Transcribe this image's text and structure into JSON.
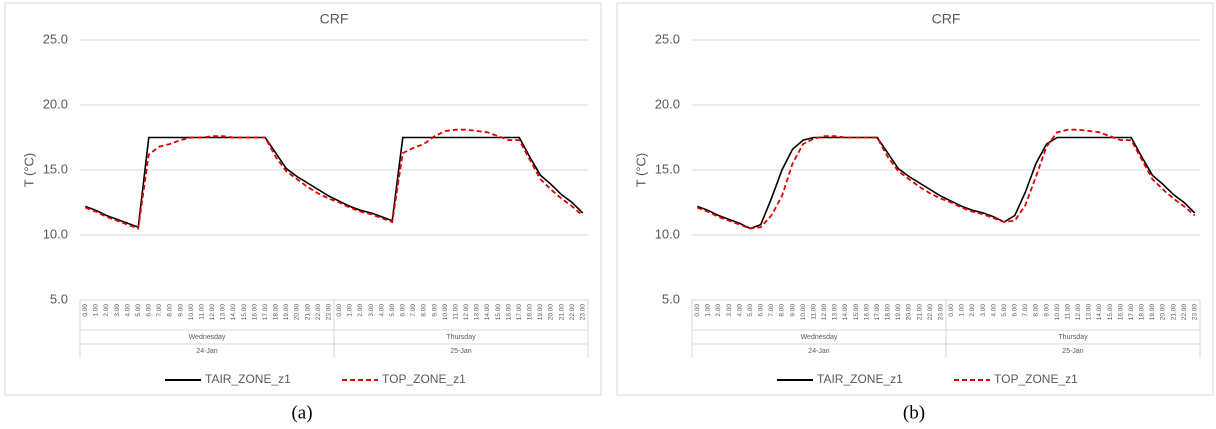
{
  "chart_data": [
    {
      "type": "line",
      "title": "CRF",
      "y_label": "T (°C)",
      "caption": "(a)",
      "ylim": [
        5,
        25
      ],
      "yticks": [
        {
          "value": 5,
          "label": "5.0"
        },
        {
          "value": 10,
          "label": "10.0"
        },
        {
          "value": 15,
          "label": "15.0"
        },
        {
          "value": 20,
          "label": "20.0"
        },
        {
          "value": 25,
          "label": "25.0"
        }
      ],
      "grid": true,
      "categories": [
        "0.00",
        "1.00",
        "2.00",
        "3.00",
        "4.00",
        "5.00",
        "6.00",
        "7.00",
        "8.00",
        "9.00",
        "10.00",
        "11.00",
        "12.00",
        "13.00",
        "14.00",
        "15.00",
        "16.00",
        "17.00",
        "18.00",
        "19.00",
        "20.00",
        "21.00",
        "22.00",
        "23.00",
        "0.00",
        "1.00",
        "2.00",
        "3.00",
        "4.00",
        "5.00",
        "6.00",
        "7.00",
        "8.00",
        "9.00",
        "10.00",
        "11.00",
        "12.00",
        "13.00",
        "14.00",
        "15.00",
        "16.00",
        "17.00",
        "18.00",
        "19.00",
        "20.00",
        "21.00",
        "22.00",
        "23.00"
      ],
      "groups": [
        {
          "name": "Wednesday",
          "date": "24-Jan"
        },
        {
          "name": "Thursday",
          "date": "25-Jan"
        }
      ],
      "legend": "bottom",
      "series": [
        {
          "name": "TAIR_ZONE_z1",
          "color": "#000000",
          "style": "solid",
          "values": [
            12.2,
            11.9,
            11.5,
            11.2,
            10.9,
            10.6,
            17.5,
            17.5,
            17.5,
            17.5,
            17.5,
            17.5,
            17.5,
            17.5,
            17.5,
            17.5,
            17.5,
            17.5,
            16.3,
            15.1,
            14.5,
            14.0,
            13.5,
            13.0,
            12.6,
            12.2,
            11.9,
            11.7,
            11.4,
            11.1,
            17.5,
            17.5,
            17.5,
            17.5,
            17.5,
            17.5,
            17.5,
            17.5,
            17.5,
            17.5,
            17.5,
            17.5,
            16.0,
            14.6,
            13.9,
            13.1,
            12.5,
            11.7
          ]
        },
        {
          "name": "TOP_ZONE_z1",
          "color": "#e00000",
          "style": "dashed",
          "values": [
            12.1,
            11.8,
            11.4,
            11.1,
            10.8,
            10.5,
            16.2,
            16.8,
            17.0,
            17.3,
            17.5,
            17.5,
            17.6,
            17.6,
            17.5,
            17.5,
            17.5,
            17.5,
            16.0,
            14.9,
            14.3,
            13.7,
            13.2,
            12.8,
            12.5,
            12.1,
            11.8,
            11.6,
            11.3,
            11.0,
            16.3,
            16.7,
            17.0,
            17.6,
            18.0,
            18.1,
            18.1,
            18.0,
            17.9,
            17.6,
            17.3,
            17.3,
            15.8,
            14.3,
            13.5,
            12.8,
            12.2,
            11.5
          ]
        }
      ]
    },
    {
      "type": "line",
      "title": "CRF",
      "y_label": "T (°C)",
      "caption": "(b)",
      "ylim": [
        5,
        25
      ],
      "yticks": [
        {
          "value": 5,
          "label": "5.0"
        },
        {
          "value": 10,
          "label": "10.0"
        },
        {
          "value": 15,
          "label": "15.0"
        },
        {
          "value": 20,
          "label": "20.0"
        },
        {
          "value": 25,
          "label": "25.0"
        }
      ],
      "grid": true,
      "categories": [
        "0.00",
        "1.00",
        "2.00",
        "3.00",
        "4.00",
        "5.00",
        "6.00",
        "7.00",
        "8.00",
        "9.00",
        "10.00",
        "11.00",
        "12.00",
        "13.00",
        "14.00",
        "15.00",
        "16.00",
        "17.00",
        "18.00",
        "19.00",
        "20.00",
        "21.00",
        "22.00",
        "23.00",
        "0.00",
        "1.00",
        "2.00",
        "3.00",
        "4.00",
        "5.00",
        "6.00",
        "7.00",
        "8.00",
        "9.00",
        "10.00",
        "11.00",
        "12.00",
        "13.00",
        "14.00",
        "15.00",
        "16.00",
        "17.00",
        "18.00",
        "19.00",
        "20.00",
        "21.00",
        "22.00",
        "23.00"
      ],
      "groups": [
        {
          "name": "Wednesday",
          "date": "24-Jan"
        },
        {
          "name": "Thursday",
          "date": "25-Jan"
        }
      ],
      "legend": "bottom",
      "series": [
        {
          "name": "TAIR_ZONE_z1",
          "color": "#000000",
          "style": "solid",
          "values": [
            12.2,
            11.9,
            11.5,
            11.2,
            10.9,
            10.5,
            10.8,
            12.8,
            15.0,
            16.6,
            17.3,
            17.5,
            17.5,
            17.5,
            17.5,
            17.5,
            17.5,
            17.5,
            16.3,
            15.1,
            14.5,
            14.0,
            13.5,
            13.0,
            12.6,
            12.2,
            11.9,
            11.7,
            11.4,
            11.0,
            11.5,
            13.3,
            15.5,
            17.0,
            17.5,
            17.5,
            17.5,
            17.5,
            17.5,
            17.5,
            17.5,
            17.5,
            16.0,
            14.6,
            13.9,
            13.1,
            12.5,
            11.7
          ]
        },
        {
          "name": "TOP_ZONE_z1",
          "color": "#e00000",
          "style": "dashed",
          "values": [
            12.1,
            11.8,
            11.4,
            11.1,
            10.8,
            10.5,
            10.6,
            11.5,
            13.0,
            15.5,
            17.0,
            17.4,
            17.6,
            17.6,
            17.5,
            17.5,
            17.5,
            17.5,
            16.0,
            14.9,
            14.3,
            13.7,
            13.2,
            12.8,
            12.5,
            12.1,
            11.8,
            11.6,
            11.3,
            11.0,
            11.1,
            12.3,
            14.5,
            16.8,
            17.9,
            18.1,
            18.1,
            18.0,
            17.9,
            17.6,
            17.3,
            17.3,
            15.8,
            14.3,
            13.5,
            12.8,
            12.2,
            11.5
          ]
        }
      ]
    }
  ]
}
